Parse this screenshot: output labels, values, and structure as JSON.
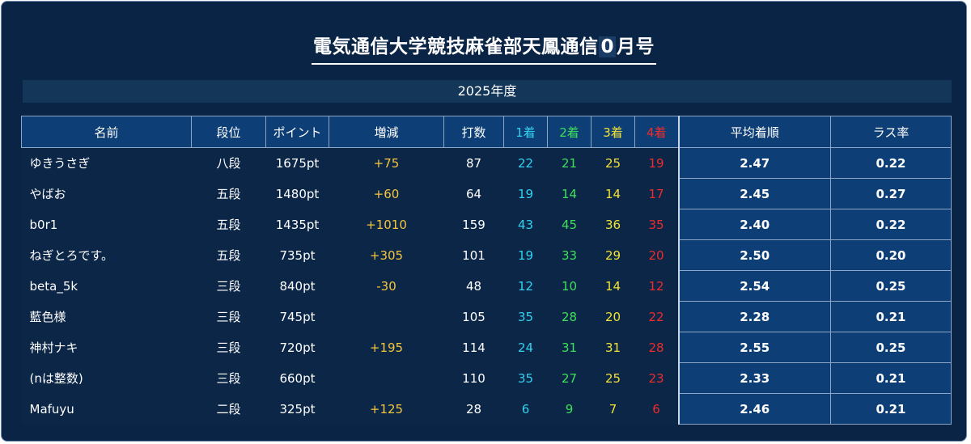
{
  "header": {
    "title_prefix": "電気通信大学競技麻雀部天鳳通信",
    "title_number": "0",
    "title_suffix": "月号"
  },
  "year_label": "2025年度",
  "table": {
    "columns": {
      "name": "名前",
      "dan": "段位",
      "points": "ポイント",
      "change": "増減",
      "games": "打数",
      "first": "1着",
      "second": "2着",
      "third": "3着",
      "fourth": "4着",
      "avg_rank": "平均着順",
      "last_rate": "ラス率"
    },
    "rows": [
      {
        "name": "ゆきうさぎ",
        "dan": "八段",
        "points": "1675pt",
        "change": "+75",
        "games": "87",
        "first": "22",
        "second": "21",
        "third": "25",
        "fourth": "19",
        "avg_rank": "2.47",
        "last_rate": "0.22"
      },
      {
        "name": "やばお",
        "dan": "五段",
        "points": "1480pt",
        "change": "+60",
        "games": "64",
        "first": "19",
        "second": "14",
        "third": "14",
        "fourth": "17",
        "avg_rank": "2.45",
        "last_rate": "0.27"
      },
      {
        "name": "b0r1",
        "dan": "五段",
        "points": "1435pt",
        "change": "+1010",
        "games": "159",
        "first": "43",
        "second": "45",
        "third": "36",
        "fourth": "35",
        "avg_rank": "2.40",
        "last_rate": "0.22"
      },
      {
        "name": "ねぎとろです。",
        "dan": "五段",
        "points": "735pt",
        "change": "+305",
        "games": "101",
        "first": "19",
        "second": "33",
        "third": "29",
        "fourth": "20",
        "avg_rank": "2.50",
        "last_rate": "0.20"
      },
      {
        "name": "beta_5k",
        "dan": "三段",
        "points": "840pt",
        "change": "-30",
        "games": "48",
        "first": "12",
        "second": "10",
        "third": "14",
        "fourth": "12",
        "avg_rank": "2.54",
        "last_rate": "0.25"
      },
      {
        "name": "藍色様",
        "dan": "三段",
        "points": "745pt",
        "change": "",
        "games": "105",
        "first": "35",
        "second": "28",
        "third": "20",
        "fourth": "22",
        "avg_rank": "2.28",
        "last_rate": "0.21"
      },
      {
        "name": "神村ナキ",
        "dan": "三段",
        "points": "720pt",
        "change": "+195",
        "games": "114",
        "first": "24",
        "second": "31",
        "third": "31",
        "fourth": "28",
        "avg_rank": "2.55",
        "last_rate": "0.25"
      },
      {
        "name": "(nは整数)",
        "dan": "三段",
        "points": "660pt",
        "change": "",
        "games": "110",
        "first": "35",
        "second": "27",
        "third": "25",
        "fourth": "23",
        "avg_rank": "2.33",
        "last_rate": "0.21"
      },
      {
        "name": "Mafuyu",
        "dan": "二段",
        "points": "325pt",
        "change": "+125",
        "games": "28",
        "first": "6",
        "second": "9",
        "third": "7",
        "fourth": "6",
        "avg_rank": "2.46",
        "last_rate": "0.21"
      }
    ]
  },
  "colors": {
    "background": "#0a2446",
    "header_cell": "#0d3e75",
    "first": "#33d1f0",
    "second": "#3de05a",
    "third": "#f2e233",
    "fourth": "#ef2b2b",
    "change": "#f3c63c"
  }
}
